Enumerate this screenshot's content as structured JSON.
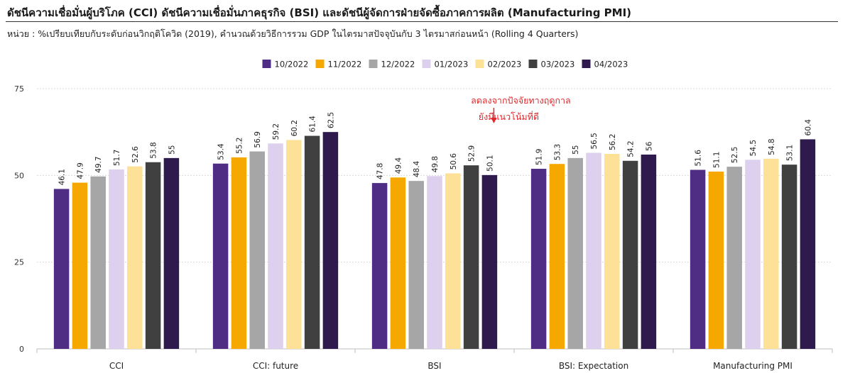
{
  "header": {
    "title": "ดัชนีความเชื่อมั่นผู้บริโภค (CCI) ดัชนีความเชื่อมั่นภาคธุรกิจ (BSI) และดัชนีผู้จัดการฝ่ายจัดซื้อภาคการผลิต (Manufacturing PMI)",
    "subtitle": "หน่วย : %เปรียบเทียบกับระดับก่อนวิกฤติโควิด (2019), คำนวณด้วยวิธีการรวม GDP ในไตรมาสปัจจุบันกับ 3 ไตรมาสก่อนหน้า (Rolling 4 Quarters)"
  },
  "chart_data": {
    "type": "bar",
    "title": "",
    "xlabel": "",
    "ylabel": "",
    "ylim": [
      0,
      75
    ],
    "yticks": [
      0,
      25,
      50,
      75
    ],
    "grid": true,
    "legend_position": "top-center",
    "categories": [
      "CCI",
      "CCI: future",
      "BSI",
      "BSI: Expectation",
      "Manufacturing PMI"
    ],
    "series": [
      {
        "name": "10/2022",
        "color": "#4f2d84",
        "values": [
          46.1,
          53.4,
          47.8,
          51.9,
          51.6
        ]
      },
      {
        "name": "11/2022",
        "color": "#f6a800",
        "values": [
          47.9,
          55.2,
          49.4,
          53.3,
          51.1
        ]
      },
      {
        "name": "12/2022",
        "color": "#a6a6a6",
        "values": [
          49.7,
          56.9,
          48.4,
          55,
          52.5
        ]
      },
      {
        "name": "01/2023",
        "color": "#dcd0ee",
        "values": [
          51.7,
          59.2,
          49.8,
          56.5,
          54.5
        ]
      },
      {
        "name": "02/2023",
        "color": "#fce197",
        "values": [
          52.6,
          60.2,
          50.6,
          56.2,
          54.8
        ]
      },
      {
        "name": "03/2023",
        "color": "#404040",
        "values": [
          53.8,
          61.4,
          52.9,
          54.2,
          53.1
        ]
      },
      {
        "name": "04/2023",
        "color": "#2e1a4d",
        "values": [
          55,
          62.5,
          50.1,
          56,
          60.4
        ]
      }
    ],
    "annotation": {
      "lines": [
        "ลดลงจากปัจจัยทางฤดูกาล",
        "ยังมีแนวโน้มที่ดี"
      ],
      "color": "#e0262b",
      "category": "BSI",
      "series": "04/2023"
    }
  }
}
